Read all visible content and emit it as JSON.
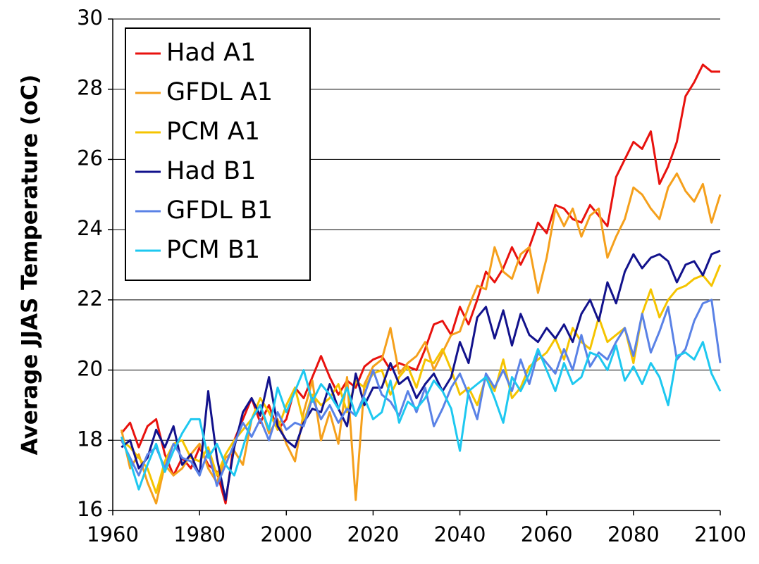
{
  "chart_data": {
    "type": "line",
    "y_label": "Average JJAS Temperature (oC)",
    "x": [
      1962,
      1964,
      1966,
      1968,
      1970,
      1972,
      1974,
      1976,
      1978,
      1980,
      1982,
      1984,
      1986,
      1988,
      1990,
      1992,
      1994,
      1996,
      1998,
      2000,
      2002,
      2004,
      2006,
      2008,
      2010,
      2012,
      2014,
      2016,
      2018,
      2020,
      2022,
      2024,
      2026,
      2028,
      2030,
      2032,
      2034,
      2036,
      2038,
      2040,
      2042,
      2044,
      2046,
      2048,
      2050,
      2052,
      2054,
      2056,
      2058,
      2060,
      2062,
      2064,
      2066,
      2068,
      2070,
      2072,
      2074,
      2076,
      2078,
      2080,
      2082,
      2084,
      2086,
      2088,
      2090,
      2092,
      2094,
      2096,
      2098,
      2100
    ],
    "series": [
      {
        "name": "Had A1",
        "color": "#e8120e",
        "values": [
          18.2,
          18.5,
          17.8,
          18.4,
          18.6,
          17.6,
          17.0,
          17.5,
          17.2,
          17.8,
          17.3,
          17.1,
          16.2,
          18.0,
          18.6,
          19.2,
          18.5,
          19.0,
          18.3,
          18.6,
          19.5,
          19.2,
          19.8,
          20.4,
          19.8,
          19.3,
          19.7,
          19.5,
          20.1,
          20.3,
          20.4,
          20.0,
          20.2,
          20.1,
          20.0,
          20.6,
          21.3,
          21.4,
          21.0,
          21.8,
          21.3,
          22.0,
          22.8,
          22.5,
          22.9,
          23.5,
          23.0,
          23.5,
          24.2,
          23.9,
          24.7,
          24.6,
          24.3,
          24.2,
          24.7,
          24.4,
          24.1,
          25.5,
          26.0,
          26.5,
          26.3,
          26.8,
          25.3,
          25.8,
          26.5,
          27.8,
          28.2,
          28.7,
          28.5,
          28.5
        ]
      },
      {
        "name": "GFDL A1",
        "color": "#f5a01c",
        "values": [
          18.3,
          17.2,
          17.6,
          16.8,
          16.2,
          17.3,
          17.0,
          17.2,
          17.6,
          17.9,
          17.2,
          16.8,
          17.5,
          17.7,
          17.3,
          18.6,
          19.0,
          18.2,
          18.6,
          17.9,
          17.4,
          18.8,
          19.7,
          18.0,
          18.8,
          17.9,
          19.8,
          16.3,
          19.6,
          20.1,
          20.3,
          21.2,
          19.9,
          20.2,
          20.4,
          20.8,
          20.0,
          20.5,
          21.0,
          21.1,
          21.8,
          22.4,
          22.3,
          23.5,
          22.8,
          22.6,
          23.3,
          23.5,
          22.2,
          23.2,
          24.6,
          24.1,
          24.6,
          23.8,
          24.4,
          24.6,
          23.2,
          23.8,
          24.3,
          25.2,
          25.0,
          24.6,
          24.3,
          25.2,
          25.6,
          25.1,
          24.8,
          25.3,
          24.2,
          25.0
        ]
      },
      {
        "name": "PCM A1",
        "color": "#f5c400",
        "values": [
          18.0,
          17.8,
          17.5,
          17.2,
          16.5,
          17.4,
          17.9,
          18.0,
          17.5,
          17.4,
          17.8,
          17.0,
          17.6,
          18.0,
          18.3,
          18.6,
          19.2,
          18.8,
          18.3,
          19.0,
          19.5,
          18.5,
          19.3,
          19.0,
          19.2,
          19.6,
          18.8,
          19.7,
          19.5,
          19.9,
          20.0,
          19.3,
          19.8,
          20.1,
          19.5,
          20.3,
          20.2,
          20.6,
          20.0,
          19.3,
          19.5,
          19.0,
          19.8,
          19.4,
          20.3,
          19.2,
          19.5,
          20.1,
          20.3,
          20.5,
          20.9,
          20.3,
          21.2,
          20.8,
          20.6,
          21.5,
          20.8,
          21.0,
          21.2,
          20.2,
          21.6,
          22.3,
          21.5,
          22.0,
          22.3,
          22.4,
          22.6,
          22.7,
          22.4,
          23.0
        ]
      },
      {
        "name": "Had B1",
        "color": "#12128c",
        "values": [
          17.8,
          18.0,
          17.2,
          17.5,
          18.3,
          17.8,
          18.4,
          17.3,
          17.6,
          17.0,
          19.4,
          17.5,
          16.3,
          17.8,
          18.8,
          19.2,
          18.7,
          19.8,
          18.4,
          18.0,
          17.8,
          18.5,
          18.9,
          18.8,
          19.6,
          18.9,
          18.4,
          19.9,
          19.0,
          19.5,
          19.5,
          20.2,
          19.6,
          19.8,
          19.2,
          19.6,
          19.9,
          19.4,
          19.8,
          20.8,
          20.2,
          21.5,
          21.8,
          20.9,
          21.7,
          20.7,
          21.6,
          21.0,
          20.8,
          21.2,
          20.9,
          21.3,
          20.8,
          21.6,
          22.0,
          21.4,
          22.5,
          21.9,
          22.8,
          23.3,
          22.9,
          23.2,
          23.3,
          23.1,
          22.5,
          23.0,
          23.1,
          22.7,
          23.3,
          23.4
        ]
      },
      {
        "name": "GFDL B1",
        "color": "#5a82e6",
        "values": [
          18.0,
          17.5,
          17.0,
          17.6,
          17.8,
          17.2,
          17.9,
          17.5,
          17.4,
          17.0,
          17.7,
          16.7,
          17.3,
          17.9,
          18.5,
          18.1,
          18.6,
          18.0,
          18.8,
          18.3,
          18.5,
          18.4,
          19.2,
          18.6,
          19.0,
          18.5,
          18.9,
          18.7,
          19.3,
          20.0,
          19.3,
          19.1,
          18.7,
          19.4,
          18.8,
          19.5,
          18.4,
          18.9,
          19.5,
          19.9,
          19.3,
          18.6,
          19.9,
          19.5,
          20.0,
          19.4,
          20.3,
          19.6,
          20.5,
          20.2,
          19.9,
          20.6,
          20.0,
          21.0,
          20.1,
          20.5,
          20.3,
          20.8,
          21.2,
          20.4,
          21.6,
          20.5,
          21.1,
          21.8,
          20.3,
          20.6,
          21.4,
          21.9,
          22.0,
          20.2
        ]
      },
      {
        "name": "PCM B1",
        "color": "#1ec8f0",
        "values": [
          18.1,
          17.4,
          16.6,
          17.3,
          17.9,
          17.1,
          17.7,
          18.2,
          18.6,
          18.6,
          17.5,
          17.9,
          17.3,
          17.0,
          17.8,
          18.6,
          19.0,
          18.3,
          19.5,
          18.8,
          19.4,
          20.0,
          19.1,
          19.6,
          19.3,
          18.9,
          19.5,
          18.7,
          19.2,
          18.6,
          18.8,
          19.7,
          18.5,
          19.1,
          18.9,
          19.2,
          19.7,
          19.4,
          18.9,
          17.7,
          19.4,
          19.6,
          19.8,
          19.2,
          18.5,
          19.8,
          19.4,
          19.9,
          20.6,
          20.0,
          19.4,
          20.2,
          19.6,
          19.8,
          20.5,
          20.4,
          20.0,
          20.7,
          19.7,
          20.1,
          19.6,
          20.2,
          19.8,
          19.0,
          20.4,
          20.5,
          20.3,
          20.8,
          19.9,
          19.4
        ]
      }
    ],
    "xlim": [
      1960,
      2100
    ],
    "xticks": [
      1960,
      1980,
      2000,
      2020,
      2040,
      2060,
      2080,
      2100
    ],
    "ylim": [
      16,
      30
    ],
    "yticks": [
      16,
      18,
      20,
      22,
      24,
      26,
      28,
      30
    ],
    "grid": true,
    "legend": "upper left"
  }
}
